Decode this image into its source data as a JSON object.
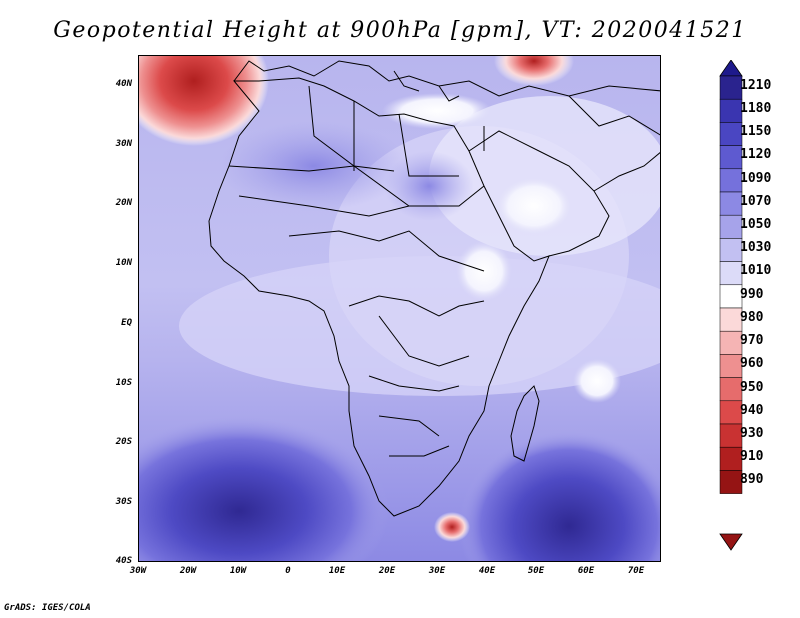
{
  "title": "Geopotential Height at 900hPa [gpm], VT: 2020041521",
  "footer": "GrADS: IGES/COLA",
  "map": {
    "lat_labels": [
      "40N",
      "30N",
      "20N",
      "10N",
      "EQ",
      "10S",
      "20S",
      "30S",
      "40S"
    ],
    "lon_labels": [
      "30W",
      "20W",
      "10W",
      "0",
      "10E",
      "20E",
      "30E",
      "40E",
      "50E",
      "60E",
      "70E"
    ],
    "lon_range": [
      -30,
      75
    ],
    "lat_range": [
      -40,
      45
    ]
  },
  "colorbar": {
    "levels": [
      "1210",
      "1180",
      "1150",
      "1120",
      "1090",
      "1070",
      "1050",
      "1030",
      "1010",
      "990",
      "980",
      "970",
      "960",
      "950",
      "940",
      "930",
      "910",
      "890"
    ],
    "colors": [
      "#1e1a8c",
      "#2a238e",
      "#3a35b0",
      "#4a46c2",
      "#5e5ad0",
      "#7571dc",
      "#8c89e4",
      "#a6a3ea",
      "#c2c0f2",
      "#dcdbf8",
      "#ffffff",
      "#fbd9d9",
      "#f5b4b4",
      "#ee9090",
      "#e66c6c",
      "#dc4a4a",
      "#c93232",
      "#b01f1f",
      "#951414"
    ]
  }
}
